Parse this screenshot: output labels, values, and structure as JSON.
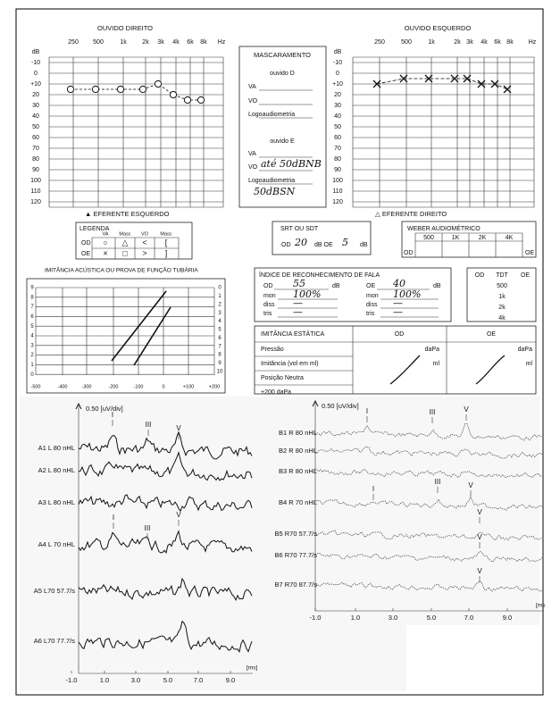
{
  "right_audiogram": {
    "title": "OUVIDO DIREITO",
    "unit": "dB",
    "frequencies": [
      "250",
      "500",
      "1k",
      "2k",
      "3k",
      "4k",
      "6k",
      "8k"
    ],
    "freq_unit": "Hz",
    "yticks": [
      -10,
      0,
      {
        "value": 10,
        "label": "+10"
      },
      20,
      30,
      40,
      50,
      60,
      70,
      80,
      90,
      100,
      110,
      120
    ],
    "thresholds": [
      15,
      15,
      15,
      15,
      10,
      20,
      25,
      25
    ]
  },
  "left_audiogram": {
    "title": "OUVIDO ESQUERDO",
    "unit": "dB",
    "frequencies": [
      "250",
      "500",
      "1k",
      "2k",
      "3k",
      "4k",
      "6k",
      "8k"
    ],
    "freq_unit": "Hz",
    "yticks": [
      -10,
      0,
      {
        "value": 10,
        "label": "+10"
      },
      20,
      30,
      40,
      50,
      60,
      70,
      80,
      90,
      100,
      110,
      120
    ],
    "thresholds": [
      10,
      5,
      5,
      5,
      5,
      10,
      10,
      15
    ]
  },
  "masking": {
    "title": "MASCARAMENTO",
    "right_heading": "ouvido D",
    "right_rows": [
      "VA",
      "VO",
      "Logoaudiometria"
    ],
    "left_heading": "ouvido E",
    "left_rows": [
      "VA",
      "VO",
      "Logoaudiometria"
    ],
    "left_vo_note": "até 50dBNB",
    "left_speech_note": "50dBSN"
  },
  "efferent": {
    "left": "▲ EFERENTE ESQUERDO",
    "right": "△ EFERENTE DIREITO"
  },
  "legend": {
    "title": "LEGENDA",
    "columns": [
      "VA",
      "Masc",
      "VO",
      "Masc"
    ],
    "rows": [
      [
        "OD",
        "○",
        "△",
        "<",
        "["
      ],
      [
        "OE",
        "×",
        "□",
        ">",
        "]"
      ]
    ]
  },
  "srt": {
    "title": "SRT OU SDT",
    "od": "OD",
    "od_value": 20,
    "mid": "dB OE",
    "oe_value": 5,
    "unit": "dB"
  },
  "weber": {
    "title": "WEBER AUDIOMÉTRICO",
    "frequencies": [
      "500",
      "1K",
      "2K",
      "4K"
    ],
    "od": "OD",
    "oe": "OE"
  },
  "tympanometry": {
    "title": "IMITÂNCIA ACÚSTICA OU PROVA DE FUNÇÃO TUBÁRIA",
    "left_scale": [
      "9",
      "8",
      "7",
      "6",
      "5",
      "4",
      "3",
      "2",
      "1",
      "0"
    ],
    "right_scale": [
      "0",
      "1",
      "2",
      "3",
      "4",
      "5",
      "6",
      "7",
      "8",
      "9",
      "10"
    ],
    "x_scale": [
      "-500",
      "-400",
      "-300",
      "-200",
      "-100",
      "0",
      "+100",
      "+200"
    ]
  },
  "speech": {
    "title": "ÍNDICE DE RECONHECIMENTO DE FALA",
    "od": {
      "label": "OD",
      "value": 55,
      "unit": "dB",
      "mon": "100%",
      "diss": "—",
      "tris": "—"
    },
    "oe": {
      "label": "OE",
      "value": 40,
      "unit": "dB",
      "mon": "100%",
      "diss": "—",
      "tris": "—"
    },
    "row_labels": [
      "mon",
      "diss",
      "tris"
    ]
  },
  "tdt": {
    "headers": [
      "OD",
      "TDT",
      "OE"
    ],
    "frequencies": [
      "500",
      "1k",
      "2k",
      "4k"
    ]
  },
  "static_immittance": {
    "title": "IMITÂNCIA ESTÁTICA",
    "od": "OD",
    "oe": "OE",
    "rows": [
      "Pressão",
      "Imitância (vol em ml)",
      "Posição Neutra",
      "+200 daPa"
    ],
    "units": [
      "daPa",
      "ml"
    ]
  },
  "abr_left": {
    "scale": "0.50 [uV/div]",
    "traces": [
      "A1 L 80 nHL",
      "A2 L 80 nHL",
      "A3 L 80 nHL",
      "A4 L 70 nHL",
      "A5 L70 57.7/s",
      "A6 L70 77.7/s"
    ],
    "peaks": [
      "I",
      "III",
      "V",
      "I",
      "III",
      "V"
    ],
    "x_labels": [
      "-1.0",
      "1.0",
      "3.0",
      "5.0",
      "7.0",
      "9.0"
    ],
    "x_unit": "[ms]"
  },
  "abr_right": {
    "scale": "0.50 [uV/div]",
    "traces": [
      "B1 R 80 nHL",
      "B2 R 80 nHL",
      "B3 R 80 nHL",
      "B4 R 70 nHL",
      "B5 R70 57.7/s",
      "B6 R70 77.7/s",
      "B7 R70 87.7/s"
    ],
    "peaks": [
      "I",
      "III",
      "V",
      "I",
      "III",
      "V",
      "V",
      "V",
      "V"
    ],
    "x_labels": [
      "-1.0",
      "1.0",
      "3.0",
      "5.0",
      "7.0",
      "9.0"
    ],
    "x_unit": "[ms"
  }
}
